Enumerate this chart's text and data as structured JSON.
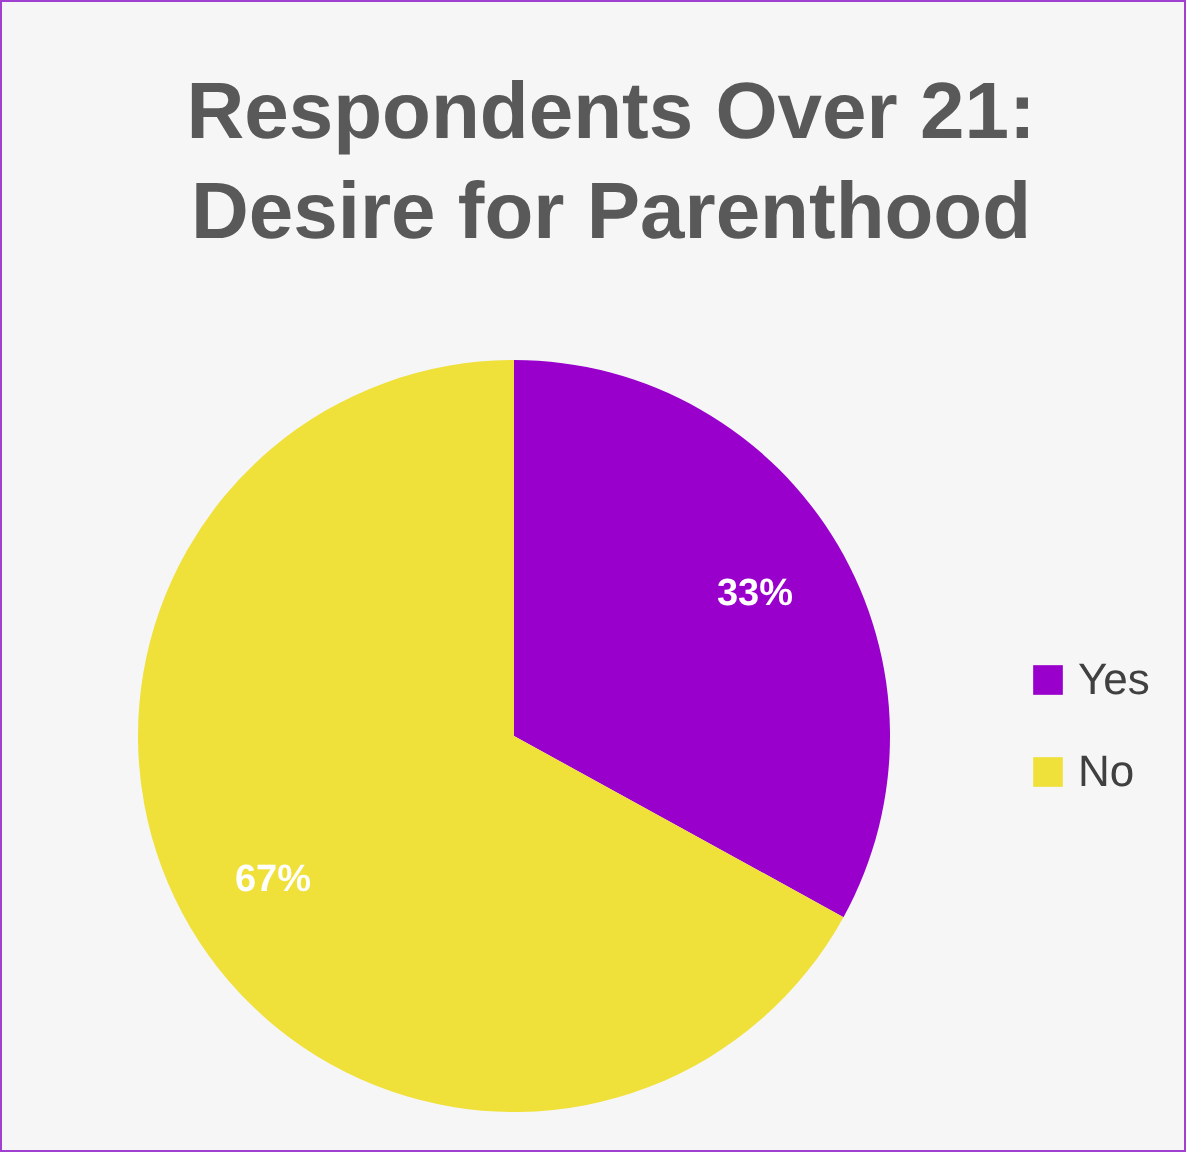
{
  "chart_data": {
    "type": "pie",
    "title": [
      "Respondents Over 21:",
      "Desire for Parenthood"
    ],
    "categories": [
      "Yes",
      "No"
    ],
    "values": [
      33,
      67
    ],
    "colors": [
      "#9900cc",
      "#efe03a"
    ],
    "value_labels": [
      "33%",
      "67%"
    ],
    "legend": "right"
  }
}
